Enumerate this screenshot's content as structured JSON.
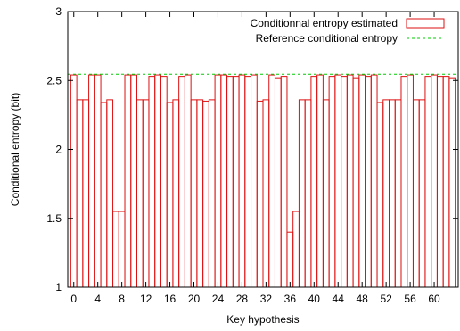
{
  "chart_data": {
    "type": "bar",
    "xlabel": "Key hypothesis",
    "ylabel": "Conditional entropy (bit)",
    "xlim": [
      -1,
      64
    ],
    "ylim": [
      1,
      3
    ],
    "x_ticks": [
      0,
      4,
      8,
      12,
      16,
      20,
      24,
      28,
      32,
      36,
      40,
      44,
      48,
      52,
      56,
      60
    ],
    "y_ticks": [
      1,
      1.5,
      2,
      2.5,
      3
    ],
    "y_tick_labels": [
      "1",
      "1.5",
      "2",
      "2.5",
      "3"
    ],
    "grid": false,
    "legend_position": "top-right",
    "series": [
      {
        "name": "Conditionnal entropy estimated",
        "style": "boxes",
        "color": "#dd1111",
        "x": [
          0,
          1,
          2,
          3,
          4,
          5,
          6,
          7,
          8,
          9,
          10,
          11,
          12,
          13,
          14,
          15,
          16,
          17,
          18,
          19,
          20,
          21,
          22,
          23,
          24,
          25,
          26,
          27,
          28,
          29,
          30,
          31,
          32,
          33,
          34,
          35,
          36,
          37,
          38,
          39,
          40,
          41,
          42,
          43,
          44,
          45,
          46,
          47,
          48,
          49,
          50,
          51,
          52,
          53,
          54,
          55,
          56,
          57,
          58,
          59,
          60,
          61,
          62,
          63
        ],
        "values": [
          2.54,
          2.36,
          2.36,
          2.54,
          2.54,
          2.34,
          2.36,
          1.55,
          1.55,
          2.54,
          2.54,
          2.36,
          2.36,
          2.53,
          2.54,
          2.53,
          2.34,
          2.36,
          2.53,
          2.54,
          2.36,
          2.36,
          2.35,
          2.36,
          2.54,
          2.54,
          2.53,
          2.53,
          2.54,
          2.53,
          2.54,
          2.35,
          2.36,
          2.54,
          2.52,
          2.53,
          1.4,
          1.55,
          2.36,
          2.36,
          2.53,
          2.54,
          2.36,
          2.53,
          2.54,
          2.53,
          2.54,
          2.52,
          2.54,
          2.53,
          2.54,
          2.34,
          2.36,
          2.36,
          2.36,
          2.53,
          2.54,
          2.36,
          2.36,
          2.53,
          2.54,
          2.53,
          2.53,
          2.52
        ]
      },
      {
        "name": "Reference conditional entropy",
        "style": "dashed-line",
        "color": "#00cc00",
        "value": 2.545
      }
    ]
  }
}
